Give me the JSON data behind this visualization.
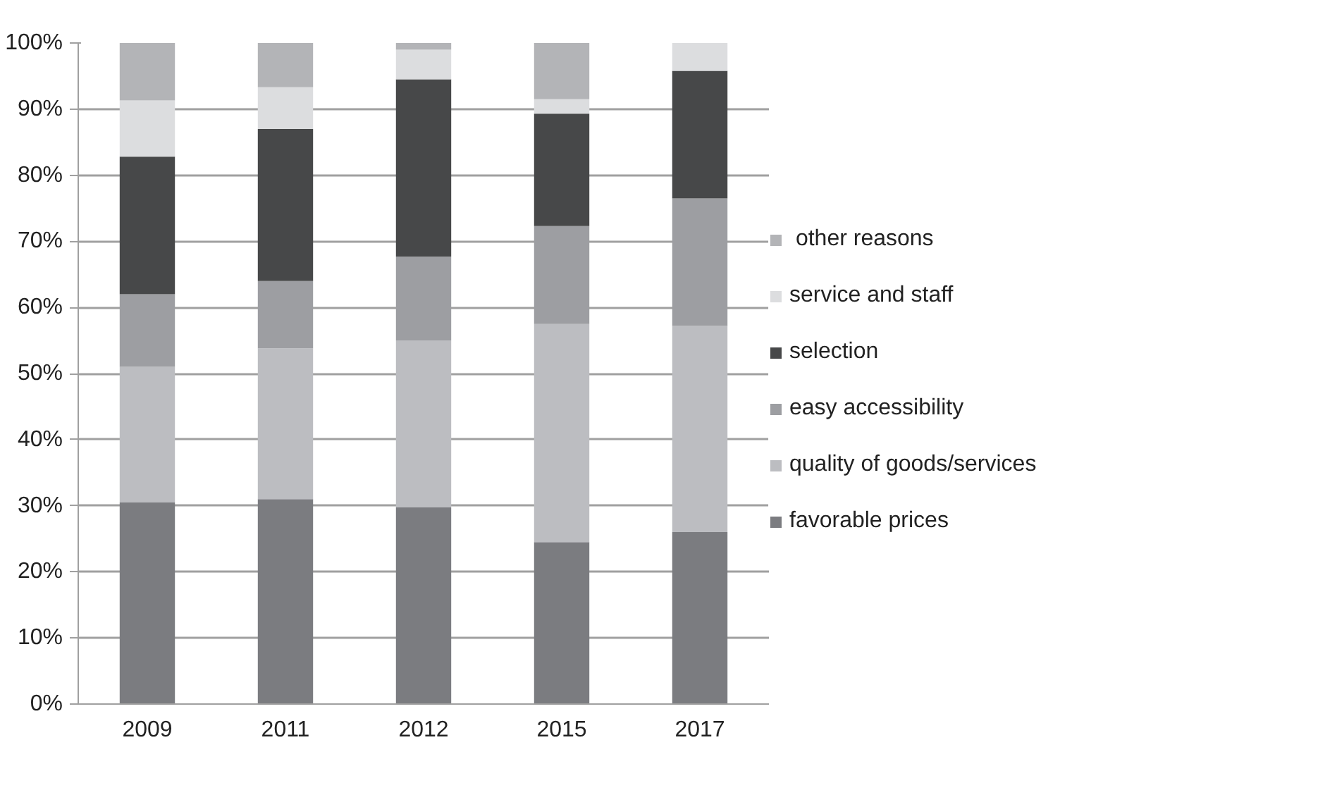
{
  "chart_data": {
    "type": "bar",
    "stacked": true,
    "categories": [
      "2009",
      "2011",
      "2012",
      "2015",
      "2017"
    ],
    "series": [
      {
        "name": "favorable prices",
        "color": "#7b7c80",
        "values": [
          30.5,
          31,
          29.8,
          24.5,
          26
        ]
      },
      {
        "name": "quality of goods/services",
        "color": "#bcbdc1",
        "values": [
          20.5,
          22.8,
          25.2,
          33,
          31.2
        ]
      },
      {
        "name": "easy accessibility",
        "color": "#9d9ea2",
        "values": [
          11,
          10.2,
          12.7,
          14.8,
          19.3
        ]
      },
      {
        "name": "selection",
        "color": "#474849",
        "values": [
          20.8,
          23,
          26.8,
          17,
          19.3
        ]
      },
      {
        "name": "service and staff",
        "color": "#dcdddf",
        "values": [
          8.5,
          6.3,
          4.5,
          2.2,
          4.2
        ]
      },
      {
        "name": " other reasons",
        "color": "#b3b4b7",
        "values": [
          8.7,
          6.7,
          1,
          8.5,
          0
        ]
      }
    ],
    "ylim": [
      0,
      100
    ],
    "yticks": [
      {
        "value": 0,
        "label": "0%"
      },
      {
        "value": 10,
        "label": "10%"
      },
      {
        "value": 20,
        "label": "20%"
      },
      {
        "value": 30,
        "label": "30%"
      },
      {
        "value": 40,
        "label": "40%"
      },
      {
        "value": 50,
        "label": "50%"
      },
      {
        "value": 60,
        "label": "60%"
      },
      {
        "value": 70,
        "label": "70%"
      },
      {
        "value": 80,
        "label": "80%"
      },
      {
        "value": 90,
        "label": "90%"
      },
      {
        "value": 100,
        "label": "100%"
      }
    ],
    "grid": "y",
    "legend": "right"
  }
}
